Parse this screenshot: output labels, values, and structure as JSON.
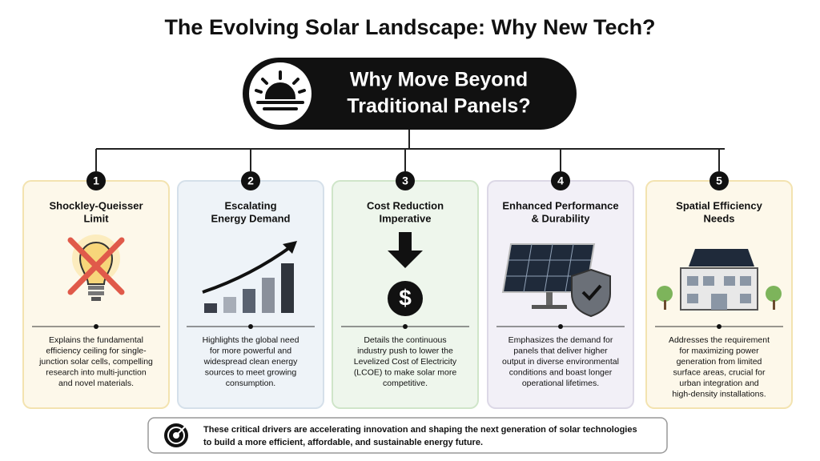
{
  "title": "The Evolving Solar Landscape: Why New Tech?",
  "header": {
    "lines": [
      "Why Move Beyond",
      "Traditional Panels?"
    ]
  },
  "cards": [
    {
      "number": 1,
      "title": [
        "Shockley-Queisser",
        "Limit"
      ],
      "description": [
        "Explains the fundamental",
        "efficiency ceiling for single-",
        "junction solar cells, compelling",
        "research into multi-junction",
        "and novel materials."
      ]
    },
    {
      "number": 2,
      "title": [
        "Escalating",
        "Energy Demand"
      ],
      "description": [
        "Highlights the global need",
        "for more powerful and",
        "widespread clean energy",
        "sources to meet growing",
        "consumption."
      ]
    },
    {
      "number": 3,
      "title": [
        "Cost Reduction",
        "Imperative"
      ],
      "description": [
        "Details the continuous",
        "industry push to lower the",
        "Levelized Cost of Electricity",
        "(LCOE) to make solar more",
        "competitive."
      ]
    },
    {
      "number": 4,
      "title": [
        "Enhanced Performance",
        "& Durability"
      ],
      "description": [
        "Emphasizes the demand for",
        "panels that deliver higher",
        "output in diverse environmental",
        "conditions and boast longer",
        "operational lifetimes."
      ]
    },
    {
      "number": 5,
      "title": [
        "Spatial Efficiency",
        "Needs"
      ],
      "description": [
        "Addresses the requirement",
        "for maximizing power",
        "generation from limited",
        "surface areas, crucial for",
        "urban integration and",
        "high-density installations."
      ]
    }
  ],
  "footer": {
    "lines": [
      "These critical drivers are accelerating innovation and shaping the next generation of solar technologies",
      "to build a more efficient, affordable, and sustainable energy future."
    ]
  }
}
